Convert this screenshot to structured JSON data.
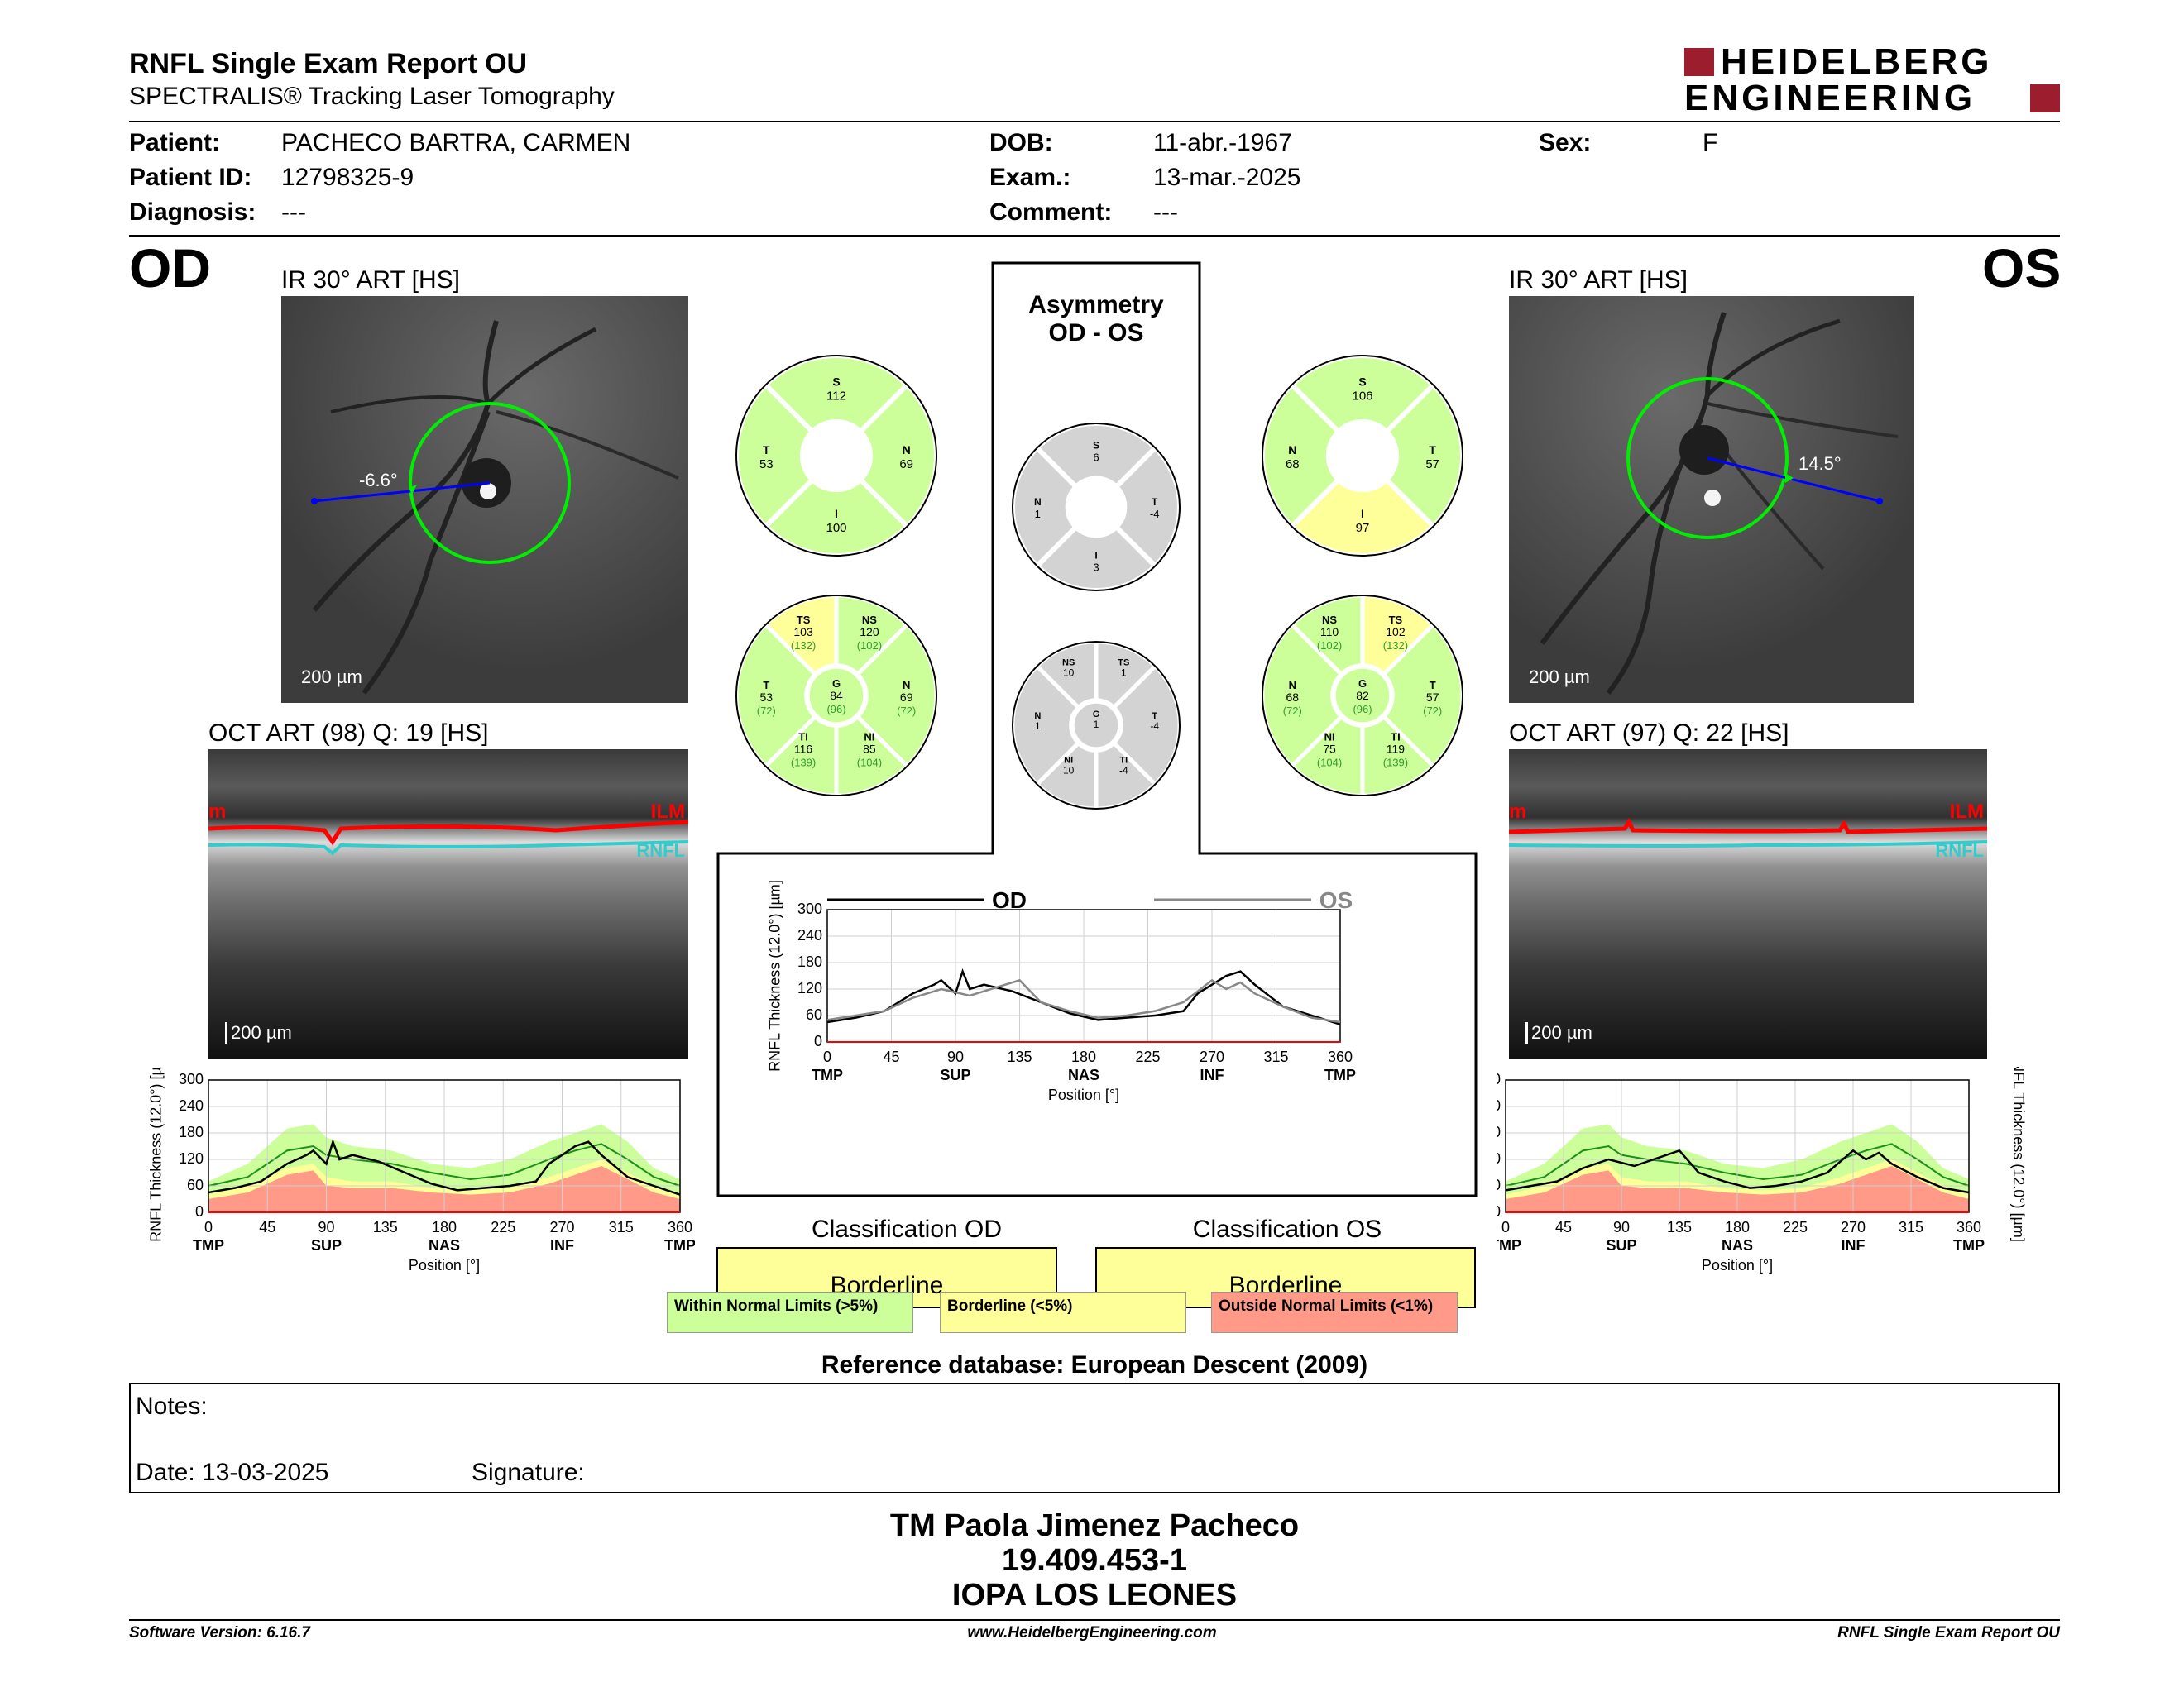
{
  "header": {
    "title": "RNFL Single Exam Report OU",
    "subtitle": "SPECTRALIS® Tracking Laser Tomography",
    "logo_line1": "HEIDELBERG",
    "logo_line2": "ENGINEERING"
  },
  "patient": {
    "patient_label": "Patient:",
    "patient_value": "PACHECO BARTRA, CARMEN",
    "id_label": "Patient ID:",
    "id_value": "12798325-9",
    "diag_label": "Diagnosis:",
    "diag_value": "---",
    "dob_label": "DOB:",
    "dob_value": "11-abr.-1967",
    "exam_label": "Exam.:",
    "exam_value": "13-mar.-2025",
    "comment_label": "Comment:",
    "comment_value": "---",
    "sex_label": "Sex:",
    "sex_value": "F"
  },
  "od": {
    "eye": "OD",
    "ir_label": "IR 30° ART [HS]",
    "oct_label": "OCT ART (98) Q: 19 [HS]",
    "angle": "-6.6°",
    "scale": "200 µm",
    "ilm": "ILM",
    "rnfl": "RNFL",
    "ilm_fragment": "m",
    "sectors4": {
      "S": "112",
      "T": "53",
      "N": "69",
      "I": "100"
    },
    "sectors6": {
      "TS": "103",
      "TS_ref": "(132)",
      "NS": "120",
      "NS_ref": "(102)",
      "T": "53",
      "T_ref": "(72)",
      "G": "84",
      "G_ref": "(96)",
      "N": "69",
      "N_ref": "(72)",
      "TI": "116",
      "TI_ref": "(139)",
      "NI": "85",
      "NI_ref": "(104)"
    },
    "classification_label": "Classification OD",
    "classification_value": "Borderline"
  },
  "os": {
    "eye": "OS",
    "ir_label": "IR 30° ART [HS]",
    "oct_label": "OCT ART (97) Q: 22 [HS]",
    "angle": "14.5°",
    "scale": "200 µm",
    "ilm": "ILM",
    "rnfl": "RNFL",
    "sectors4": {
      "S": "106",
      "T": "57",
      "N": "68",
      "I": "97"
    },
    "sectors6": {
      "TS": "102",
      "TS_ref": "(132)",
      "NS": "110",
      "NS_ref": "(102)",
      "T": "57",
      "T_ref": "(72)",
      "G": "82",
      "G_ref": "(96)",
      "N": "68",
      "N_ref": "(72)",
      "TI": "119",
      "TI_ref": "(139)",
      "NI": "75",
      "NI_ref": "(104)"
    },
    "classification_label": "Classification OS",
    "classification_value": "Borderline"
  },
  "asymmetry": {
    "title1": "Asymmetry",
    "title2": "OD - OS",
    "sectors4": {
      "S": "6",
      "N": "1",
      "T": "-4",
      "I": "3"
    },
    "sectors6": {
      "NS": "10",
      "TS": "1",
      "N": "1",
      "G": "1",
      "T": "-4",
      "NI": "10",
      "TI": "-4"
    }
  },
  "colors": {
    "green": "#ccff99",
    "yellow": "#ffff99",
    "red": "#ff9988",
    "gray": "#d3d3d3",
    "ilm": "#ff0000",
    "rnfl": "#33cccc",
    "circle": "#00ee00",
    "scan_line": "#0000ff"
  },
  "chart_data": [
    {
      "type": "line",
      "ylabel": "RNFL Thickness (12.0°) [µm]",
      "xlabel": "Position [°]",
      "x_ticks": [
        "0",
        "45",
        "90",
        "135",
        "180",
        "225",
        "270",
        "315",
        "360"
      ],
      "x_region_labels": [
        "TMP",
        "SUP",
        "NAS",
        "INF",
        "TMP"
      ],
      "y_ticks": [
        "0",
        "60",
        "120",
        "180",
        "240",
        "300"
      ],
      "xlim": [
        0,
        360
      ],
      "ylim": [
        0,
        300
      ],
      "series": [
        {
          "name": "OD",
          "x": [
            0,
            20,
            40,
            60,
            75,
            80,
            90,
            95,
            100,
            110,
            130,
            150,
            170,
            190,
            210,
            230,
            250,
            260,
            270,
            280,
            290,
            300,
            320,
            340,
            360
          ],
          "y": [
            45,
            55,
            70,
            110,
            130,
            140,
            110,
            160,
            120,
            130,
            115,
            90,
            65,
            50,
            55,
            60,
            70,
            110,
            130,
            150,
            160,
            130,
            80,
            60,
            40
          ]
        },
        {
          "name": "OS",
          "x": [
            0,
            20,
            40,
            60,
            80,
            100,
            120,
            135,
            150,
            170,
            190,
            210,
            230,
            250,
            270,
            280,
            290,
            300,
            320,
            340,
            360
          ],
          "y": [
            50,
            60,
            70,
            100,
            120,
            105,
            125,
            140,
            90,
            70,
            55,
            60,
            70,
            90,
            140,
            120,
            135,
            110,
            80,
            55,
            45
          ]
        }
      ]
    }
  ],
  "legend": {
    "wnl": "Within Normal Limits (>5%)",
    "bl": "Borderline (<5%)",
    "onl": "Outside Normal Limits (<1%)"
  },
  "reference": "Reference database: European Descent (2009)",
  "notes": {
    "notes_label": "Notes:",
    "date_label": "Date: 13-03-2025",
    "signature_label": "Signature:"
  },
  "stamp": {
    "line1": "TM Paola Jimenez Pacheco",
    "line2": "19.409.453-1",
    "line3": "IOPA LOS LEONES"
  },
  "footer": {
    "left": "Software Version: 6.16.7",
    "center": "www.HeidelbergEngineering.com",
    "right": "RNFL Single Exam Report OU"
  }
}
